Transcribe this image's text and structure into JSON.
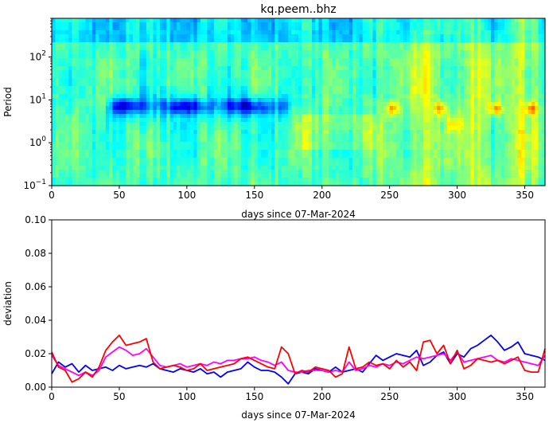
{
  "chart_data": [
    {
      "type": "heatmap",
      "title": "kq.peem..bhz",
      "xlabel": "days since 07-Mar-2024",
      "ylabel": "Period",
      "xlim": [
        0,
        365
      ],
      "ylim": [
        0.1,
        800
      ],
      "yscale": "log",
      "x_ticks": [
        0,
        50,
        100,
        150,
        200,
        250,
        300,
        350
      ],
      "y_ticks": [
        {
          "value": 0.1,
          "base": "10",
          "exp": "−1"
        },
        {
          "value": 1,
          "base": "10",
          "exp": "0"
        },
        {
          "value": 10,
          "base": "10",
          "exp": "1"
        },
        {
          "value": 100,
          "base": "10",
          "exp": "2"
        }
      ],
      "colormap": "jet",
      "features": [
        {
          "desc": "low-value band",
          "x": [
            40,
            178
          ],
          "period": [
            4,
            20
          ],
          "level": 0.18
        },
        {
          "desc": "high-value bursts",
          "centers": [
            252,
            287,
            328,
            355
          ],
          "period": [
            4,
            12
          ],
          "level": 0.72
        },
        {
          "desc": "elevated greenish background after day ~240",
          "x": [
            240,
            365
          ],
          "level": 0.5
        }
      ]
    },
    {
      "type": "line",
      "xlabel": "days since 07-Mar-2024",
      "ylabel": "deviation",
      "xlim": [
        0,
        365
      ],
      "ylim": [
        0,
        0.1
      ],
      "x_ticks": [
        0,
        50,
        100,
        150,
        200,
        250,
        300,
        350
      ],
      "y_ticks": [
        "0.00",
        "0.02",
        "0.04",
        "0.06",
        "0.08",
        "0.10"
      ],
      "grid": false,
      "series": [
        {
          "color": "#0000ff",
          "x": [
            0,
            5,
            10,
            15,
            20,
            25,
            30,
            35,
            40,
            45,
            50,
            55,
            60,
            65,
            70,
            75,
            80,
            85,
            90,
            95,
            100,
            105,
            110,
            115,
            120,
            125,
            130,
            135,
            140,
            145,
            150,
            155,
            160,
            165,
            170,
            175,
            180,
            185,
            190,
            195,
            200,
            205,
            210,
            215,
            220,
            225,
            230,
            235,
            240,
            245,
            250,
            255,
            260,
            265,
            270,
            275,
            280,
            285,
            290,
            295,
            300,
            305,
            310,
            315,
            320,
            325,
            330,
            335,
            340,
            345,
            350,
            355,
            360,
            365
          ],
          "values": [
            0.008,
            0.015,
            0.012,
            0.014,
            0.009,
            0.013,
            0.01,
            0.011,
            0.012,
            0.01,
            0.013,
            0.011,
            0.012,
            0.013,
            0.012,
            0.014,
            0.011,
            0.01,
            0.009,
            0.011,
            0.01,
            0.009,
            0.011,
            0.008,
            0.009,
            0.006,
            0.009,
            0.01,
            0.011,
            0.015,
            0.012,
            0.01,
            0.01,
            0.009,
            0.006,
            0.002,
            0.008,
            0.009,
            0.008,
            0.011,
            0.01,
            0.009,
            0.012,
            0.009,
            0.01,
            0.011,
            0.009,
            0.014,
            0.019,
            0.016,
            0.018,
            0.02,
            0.019,
            0.018,
            0.022,
            0.013,
            0.015,
            0.019,
            0.021,
            0.014,
            0.02,
            0.018,
            0.023,
            0.025,
            0.028,
            0.031,
            0.027,
            0.022,
            0.024,
            0.027,
            0.02,
            0.019,
            0.018,
            0.016
          ]
        },
        {
          "color": "#ff00ff",
          "x": [
            0,
            5,
            10,
            15,
            20,
            25,
            30,
            35,
            40,
            45,
            50,
            55,
            60,
            65,
            70,
            75,
            80,
            85,
            90,
            95,
            100,
            105,
            110,
            115,
            120,
            125,
            130,
            135,
            140,
            145,
            150,
            155,
            160,
            165,
            170,
            175,
            180,
            185,
            190,
            195,
            200,
            205,
            210,
            215,
            220,
            225,
            230,
            235,
            240,
            245,
            250,
            255,
            260,
            265,
            270,
            275,
            280,
            285,
            290,
            295,
            300,
            305,
            310,
            315,
            320,
            325,
            330,
            335,
            340,
            345,
            350,
            355,
            360,
            365
          ],
          "values": [
            0.019,
            0.013,
            0.011,
            0.009,
            0.007,
            0.009,
            0.007,
            0.01,
            0.018,
            0.021,
            0.024,
            0.022,
            0.019,
            0.02,
            0.023,
            0.018,
            0.013,
            0.012,
            0.013,
            0.014,
            0.012,
            0.013,
            0.014,
            0.013,
            0.015,
            0.014,
            0.016,
            0.016,
            0.017,
            0.017,
            0.018,
            0.016,
            0.015,
            0.013,
            0.015,
            0.01,
            0.009,
            0.009,
            0.01,
            0.01,
            0.01,
            0.009,
            0.01,
            0.009,
            0.015,
            0.01,
            0.011,
            0.013,
            0.012,
            0.014,
            0.013,
            0.015,
            0.014,
            0.016,
            0.018,
            0.017,
            0.018,
            0.019,
            0.02,
            0.016,
            0.021,
            0.015,
            0.016,
            0.017,
            0.018,
            0.019,
            0.016,
            0.015,
            0.017,
            0.016,
            0.015,
            0.014,
            0.013,
            0.019
          ]
        },
        {
          "color": "#ff0000",
          "x": [
            0,
            5,
            10,
            15,
            20,
            25,
            30,
            35,
            40,
            45,
            50,
            55,
            60,
            65,
            70,
            75,
            80,
            85,
            90,
            95,
            100,
            105,
            110,
            115,
            120,
            125,
            130,
            135,
            140,
            145,
            150,
            155,
            160,
            165,
            170,
            175,
            180,
            185,
            190,
            195,
            200,
            205,
            210,
            215,
            220,
            225,
            230,
            235,
            240,
            245,
            250,
            255,
            260,
            265,
            270,
            275,
            280,
            285,
            290,
            295,
            300,
            305,
            310,
            315,
            320,
            325,
            330,
            335,
            340,
            345,
            350,
            355,
            360,
            365
          ],
          "values": [
            0.021,
            0.012,
            0.01,
            0.003,
            0.005,
            0.009,
            0.006,
            0.012,
            0.022,
            0.027,
            0.031,
            0.025,
            0.026,
            0.027,
            0.029,
            0.015,
            0.011,
            0.012,
            0.013,
            0.012,
            0.01,
            0.011,
            0.014,
            0.01,
            0.011,
            0.012,
            0.013,
            0.014,
            0.017,
            0.018,
            0.016,
            0.014,
            0.012,
            0.011,
            0.024,
            0.02,
            0.008,
            0.01,
            0.009,
            0.012,
            0.011,
            0.01,
            0.006,
            0.008,
            0.024,
            0.011,
            0.012,
            0.015,
            0.013,
            0.014,
            0.011,
            0.016,
            0.012,
            0.015,
            0.01,
            0.027,
            0.028,
            0.02,
            0.025,
            0.014,
            0.022,
            0.011,
            0.013,
            0.017,
            0.016,
            0.015,
            0.016,
            0.014,
            0.016,
            0.018,
            0.01,
            0.009,
            0.009,
            0.023
          ]
        }
      ]
    }
  ]
}
